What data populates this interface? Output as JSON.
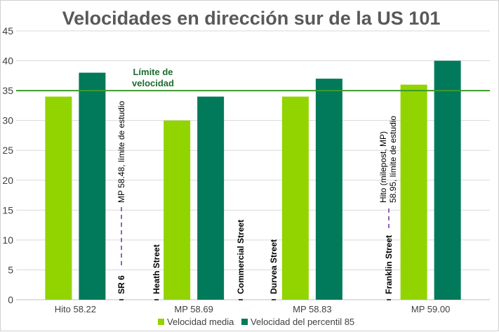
{
  "chart_data": {
    "type": "bar",
    "title": "Velocidades en dirección sur de la US 101",
    "xlabel": "",
    "ylabel": "",
    "ylim": [
      0,
      45
    ],
    "yticks": [
      0,
      5,
      10,
      15,
      20,
      25,
      30,
      35,
      40,
      45
    ],
    "grid": true,
    "legend_position": "bottom",
    "categories": [
      "Hito 58.22",
      "MP 58.69",
      "MP 58.83",
      "MP 59.00"
    ],
    "series": [
      {
        "name": "Velocidad media",
        "color": "#92d400",
        "values": [
          34,
          30,
          34,
          36
        ]
      },
      {
        "name": "Velocidad del percentil 85",
        "color": "#007a5a",
        "values": [
          38,
          34,
          37,
          40
        ]
      }
    ],
    "reference_line": {
      "value": 35,
      "color": "#3c9a2a",
      "label_lines": [
        "Límite de",
        "velocidad"
      ]
    },
    "street_markers": [
      "SR 6",
      "Heath Street",
      "Commercial Street",
      "Durvea Street",
      "Franklin Street"
    ],
    "study_limit_notes": [
      {
        "lines": [
          "MP 58.48, límite de estudio"
        ]
      },
      {
        "lines": [
          "Hito (milepost, MP)",
          "58.95, límite de estudio"
        ]
      }
    ]
  }
}
